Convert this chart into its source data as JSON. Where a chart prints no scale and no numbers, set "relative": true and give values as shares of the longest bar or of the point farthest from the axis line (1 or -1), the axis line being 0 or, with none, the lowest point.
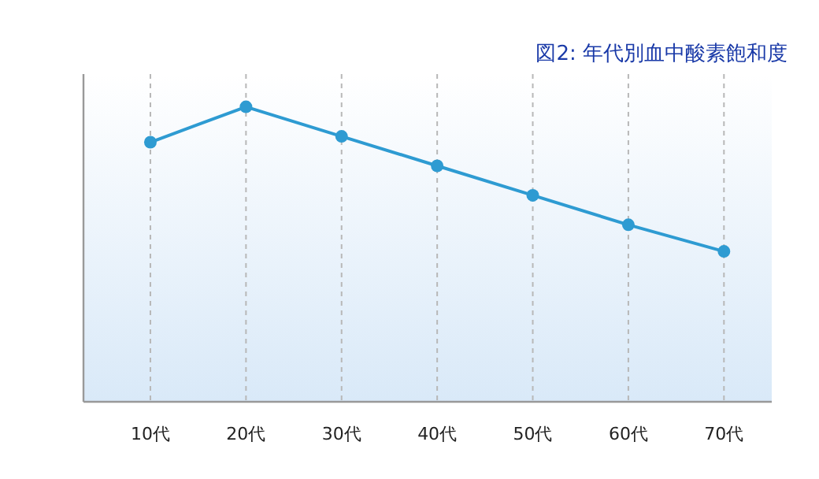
{
  "chart_data": {
    "type": "line",
    "title": "図2: 年代別血中酸素飽和度",
    "relative": true,
    "categories": [
      "10代",
      "20代",
      "30代",
      "40代",
      "50代",
      "60代",
      "70代"
    ],
    "series": [
      {
        "color": "#2e9bd2",
        "values": [
          0.88,
          1,
          0.9,
          0.8,
          0.7,
          0.6,
          0.51
        ]
      }
    ],
    "marker": "circle",
    "grid": "x"
  }
}
